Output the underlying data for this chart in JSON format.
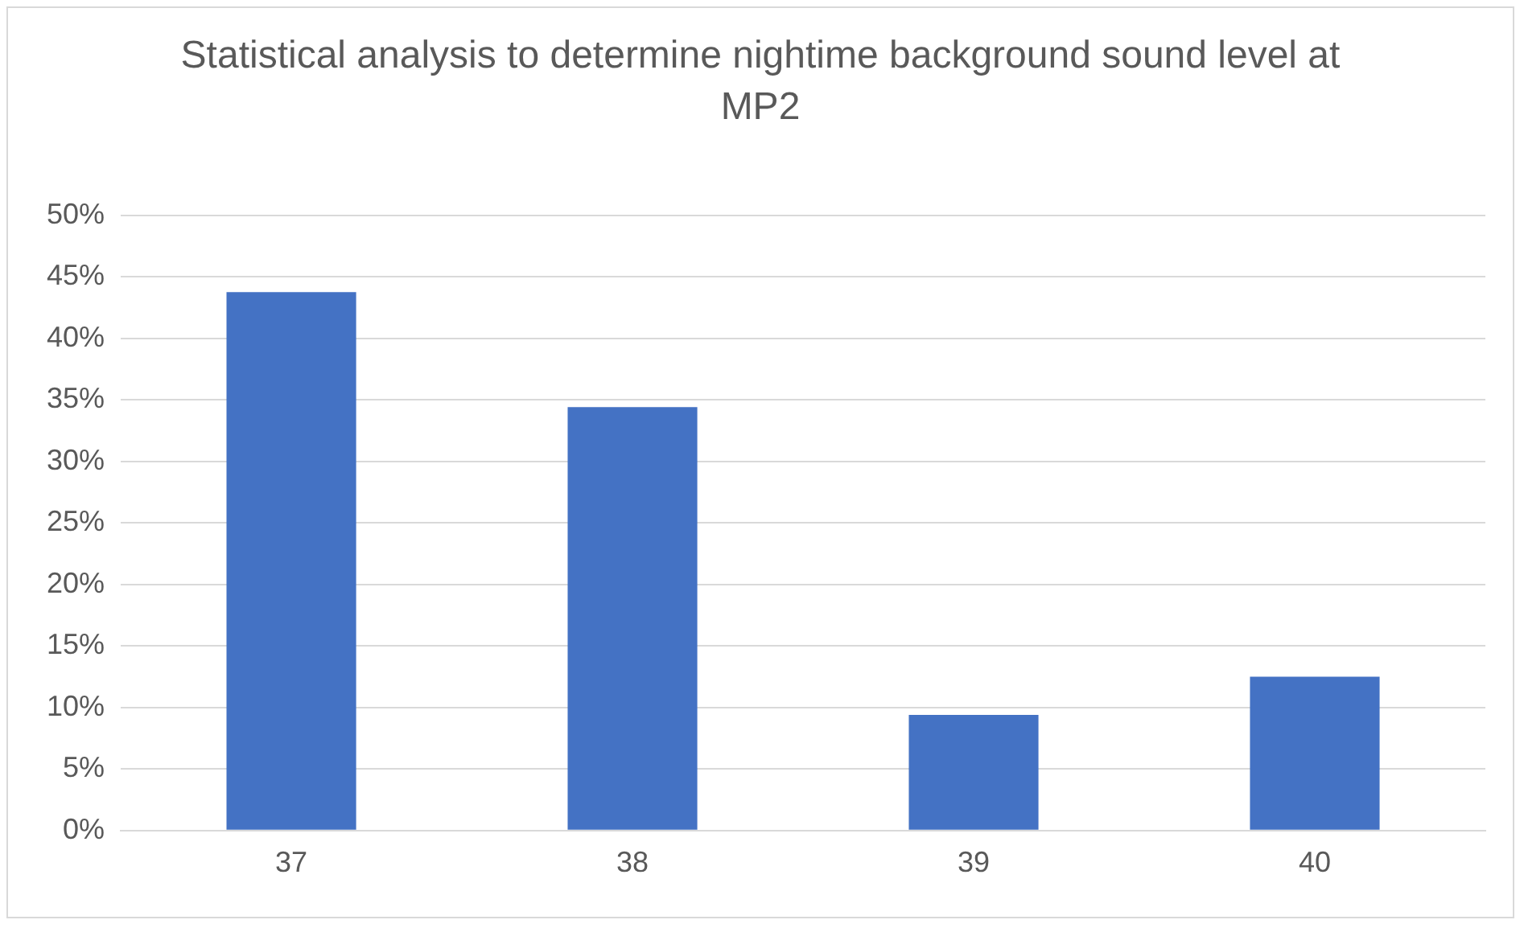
{
  "chart_data": {
    "type": "bar",
    "title": "Statistical analysis to determine nightime background sound level at MP2",
    "categories": [
      "37",
      "38",
      "39",
      "40"
    ],
    "values": [
      43.75,
      34.4,
      9.4,
      12.5
    ],
    "color": "#4472c4",
    "ylim": [
      0,
      50
    ],
    "yticks": [
      {
        "value": 0,
        "label": "0%"
      },
      {
        "value": 5,
        "label": "5%"
      },
      {
        "value": 10,
        "label": "10%"
      },
      {
        "value": 15,
        "label": "15%"
      },
      {
        "value": 20,
        "label": "20%"
      },
      {
        "value": 25,
        "label": "25%"
      },
      {
        "value": 30,
        "label": "30%"
      },
      {
        "value": 35,
        "label": "35%"
      },
      {
        "value": 40,
        "label": "40%"
      },
      {
        "value": 45,
        "label": "45%"
      },
      {
        "value": 50,
        "label": "50%"
      }
    ],
    "grid": "y",
    "legend": false
  }
}
